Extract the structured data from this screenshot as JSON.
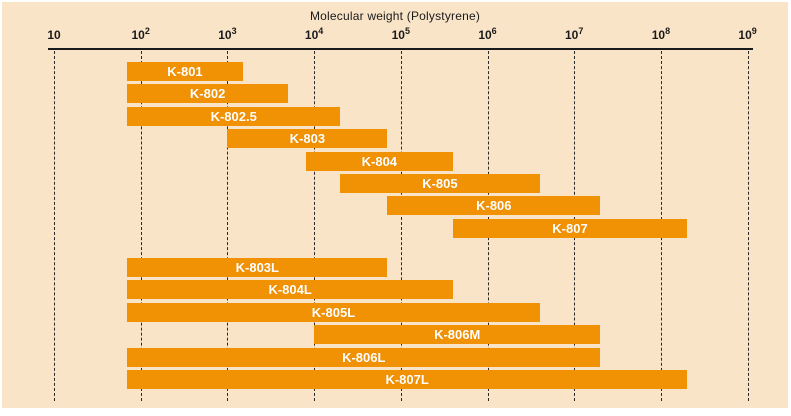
{
  "colors": {
    "card_background": "#fae4c8",
    "bar": "#f19104",
    "bar_label": "#ffffff",
    "axis": "#1a1a1a"
  },
  "chart_data": {
    "type": "bar",
    "orientation": "horizontal",
    "scale": "log10",
    "title": "Molecular weight (Polystyrene)",
    "xlabel": "Molecular weight (Polystyrene)",
    "ylabel": "",
    "xlim": [
      10,
      1000000000
    ],
    "grid": "vertical-dashed",
    "legend": "none",
    "ticks": [
      {
        "value": 10,
        "display": "10",
        "sup": ""
      },
      {
        "value": 100,
        "display": "10",
        "sup": "2"
      },
      {
        "value": 1000,
        "display": "10",
        "sup": "3"
      },
      {
        "value": 10000,
        "display": "10",
        "sup": "4"
      },
      {
        "value": 100000,
        "display": "10",
        "sup": "5"
      },
      {
        "value": 1000000,
        "display": "10",
        "sup": "6"
      },
      {
        "value": 10000000,
        "display": "10",
        "sup": "7"
      },
      {
        "value": 100000000,
        "display": "10",
        "sup": "8"
      },
      {
        "value": 1000000000,
        "display": "10",
        "sup": "9"
      }
    ],
    "series": [
      {
        "label": "K-801",
        "group": 1,
        "min": 70,
        "max": 1500
      },
      {
        "label": "K-802",
        "group": 1,
        "min": 70,
        "max": 5000
      },
      {
        "label": "K-802.5",
        "group": 1,
        "min": 70,
        "max": 20000
      },
      {
        "label": "K-803",
        "group": 1,
        "min": 1000,
        "max": 70000
      },
      {
        "label": "K-804",
        "group": 1,
        "min": 8000,
        "max": 400000
      },
      {
        "label": "K-805",
        "group": 1,
        "min": 20000,
        "max": 4000000
      },
      {
        "label": "K-806",
        "group": 1,
        "min": 70000,
        "max": 20000000
      },
      {
        "label": "K-807",
        "group": 1,
        "min": 400000,
        "max": 200000000
      },
      {
        "label": "K-803L",
        "group": 2,
        "min": 70,
        "max": 70000
      },
      {
        "label": "K-804L",
        "group": 2,
        "min": 70,
        "max": 400000
      },
      {
        "label": "K-805L",
        "group": 2,
        "min": 70,
        "max": 4000000
      },
      {
        "label": "K-806M",
        "group": 2,
        "min": 10000,
        "max": 20000000
      },
      {
        "label": "K-806L",
        "group": 2,
        "min": 70,
        "max": 20000000
      },
      {
        "label": "K-807L",
        "group": 2,
        "min": 70,
        "max": 200000000
      }
    ]
  }
}
